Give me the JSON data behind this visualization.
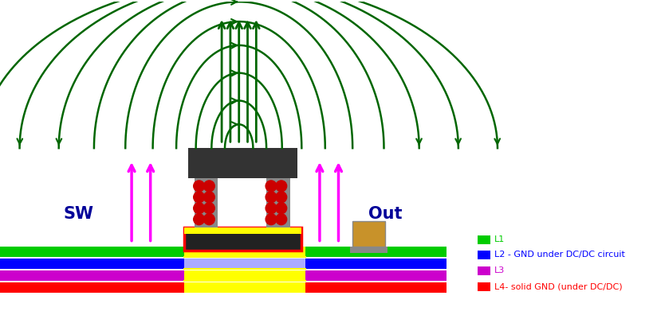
{
  "figsize": [
    8.24,
    3.96
  ],
  "dpi": 100,
  "bg_color": "#ffffff",
  "layer_colors": [
    "#00cc00",
    "#0000ff",
    "#cc00cc",
    "#ff0000"
  ],
  "layer_labels": [
    "L1",
    "L2 - GND under DC/DC circuit",
    "L3",
    "L4- solid GND (under DC/DC)"
  ],
  "layer_label_colors": [
    "#00cc00",
    "#0000ff",
    "#cc00cc",
    "#ff0000"
  ],
  "field_line_color": "#006600",
  "dot_color": "#cc0000",
  "core_color": "#333333",
  "arrow_color_magenta": "#ff00ff",
  "sw_label": "SW",
  "out_label": "Out"
}
